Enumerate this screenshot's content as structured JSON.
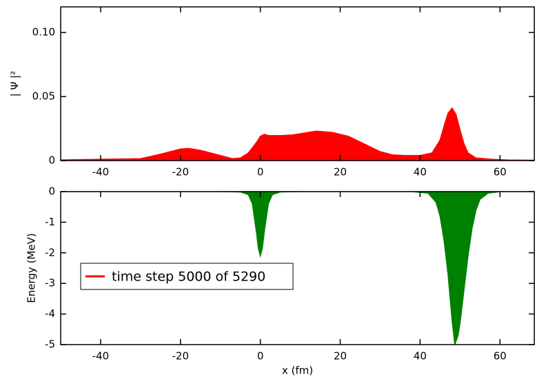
{
  "chart_data": [
    {
      "type": "area",
      "y_label": "| Ψ |²",
      "x": [
        -50,
        -40,
        -30,
        -25,
        -20,
        -18,
        -15,
        -10,
        -7,
        -5,
        -3,
        -1,
        0,
        1,
        2,
        5,
        8,
        10,
        14,
        18,
        22,
        26,
        30,
        33,
        36,
        40,
        43,
        45,
        46,
        47,
        48,
        49,
        50,
        51,
        52,
        54,
        58,
        62,
        68.6
      ],
      "series": [
        {
          "name": "time step 5000 of 5290",
          "color": "#ff0000",
          "values": [
            0.0005,
            0.001,
            0.0015,
            0.005,
            0.009,
            0.0095,
            0.008,
            0.004,
            0.0015,
            0.002,
            0.006,
            0.014,
            0.019,
            0.0205,
            0.0195,
            0.0195,
            0.02,
            0.021,
            0.023,
            0.022,
            0.019,
            0.013,
            0.007,
            0.0045,
            0.004,
            0.004,
            0.006,
            0.016,
            0.027,
            0.037,
            0.041,
            0.036,
            0.024,
            0.013,
            0.006,
            0.002,
            0.001,
            0.0005,
            0.0003
          ]
        }
      ],
      "xlim": [
        -50,
        68.6
      ],
      "xticks": [
        -40,
        -20,
        0,
        20,
        40,
        60
      ],
      "ylim": [
        0,
        0.12
      ],
      "yticks": [
        0,
        0.05,
        {
          "value": 0.1,
          "label": "0.10"
        }
      ]
    },
    {
      "type": "area",
      "x_label": "x (fm)",
      "y_label": "Energy (MeV)",
      "x": [
        -50,
        -10,
        -5,
        -3,
        -2,
        -1,
        -0.5,
        0,
        0.5,
        1,
        2,
        3,
        5,
        10,
        38,
        42,
        44,
        45,
        46,
        47,
        48,
        48.7,
        49.5,
        50,
        51,
        52,
        53,
        54,
        55,
        57,
        60,
        68.6
      ],
      "values": [
        0,
        0,
        -0.01,
        -0.1,
        -0.4,
        -1.3,
        -1.85,
        -2.1,
        -1.85,
        -1.3,
        -0.4,
        -0.1,
        -0.01,
        0,
        0,
        -0.05,
        -0.35,
        -0.8,
        -1.6,
        -2.7,
        -4.2,
        -5,
        -4.7,
        -4.3,
        -3.2,
        -2.1,
        -1.2,
        -0.6,
        -0.25,
        -0.05,
        0,
        0
      ],
      "color": "#008000",
      "xlim": [
        -50,
        68.6
      ],
      "xticks": [
        -40,
        -20,
        0,
        20,
        40,
        60
      ],
      "ylim": [
        -5,
        0
      ],
      "yticks": [
        -5,
        -4,
        -3,
        -2,
        -1,
        0
      ]
    }
  ]
}
